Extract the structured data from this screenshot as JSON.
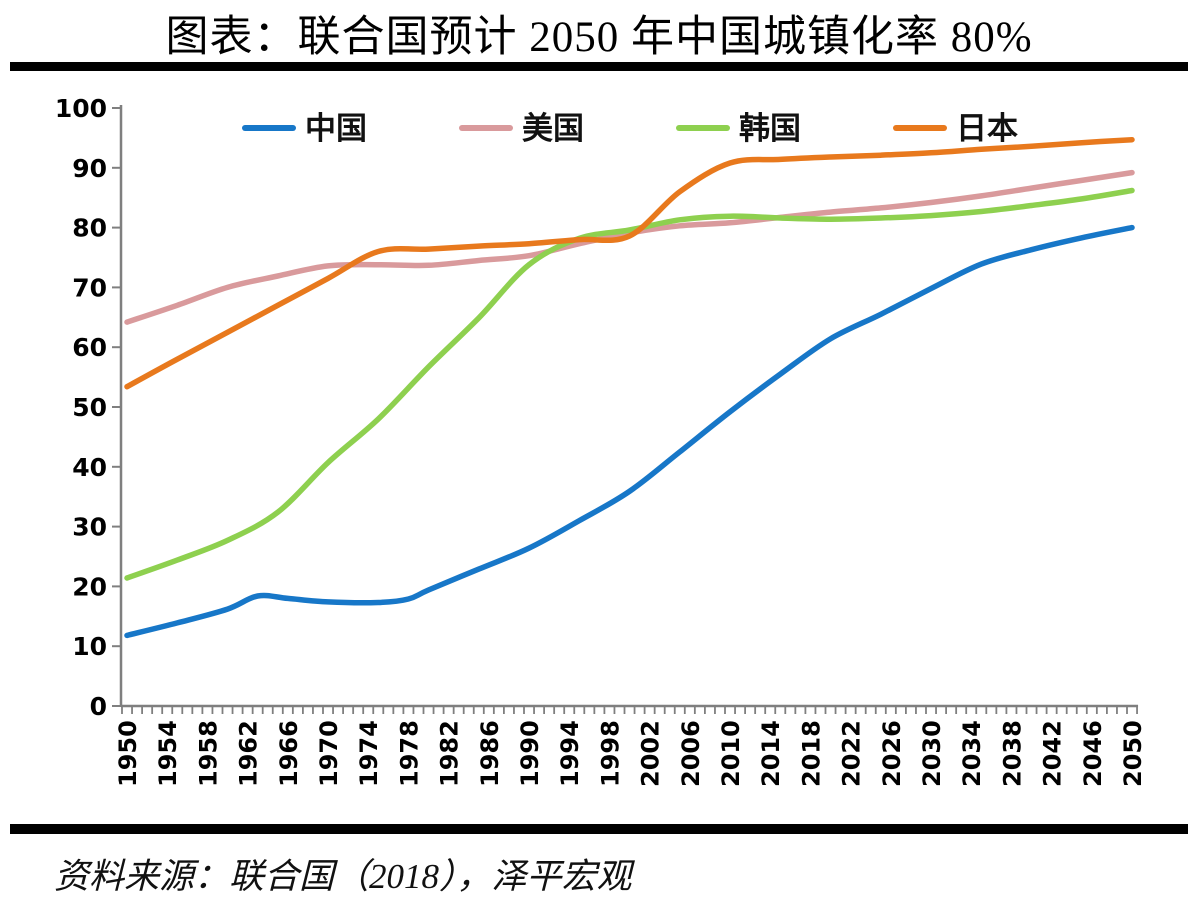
{
  "title": "图表：联合国预计 2050 年中国城镇化率 80%",
  "source_note": "资料来源：联合国（2018），泽平宏观",
  "styles": {
    "background": "#FFFFFF",
    "rule_color": "#000000",
    "axis_color": "#7F7F7F",
    "tick_label_color": "#000000",
    "title_color": "#000000"
  },
  "chart_data": {
    "type": "line",
    "title": "图表：联合国预计 2050 年中国城镇化率 80%",
    "xlabel": "",
    "ylabel": "",
    "x_range": [
      1950,
      2050
    ],
    "ylim": [
      0,
      100
    ],
    "grid": false,
    "legend_position": "top-center",
    "y_ticks": [
      0,
      10,
      20,
      30,
      40,
      50,
      60,
      70,
      80,
      90,
      100
    ],
    "x_tick_labels": [
      1950,
      1954,
      1958,
      1962,
      1966,
      1970,
      1974,
      1978,
      1982,
      1986,
      1990,
      1994,
      1998,
      2002,
      2006,
      2010,
      2014,
      2018,
      2022,
      2026,
      2030,
      2034,
      2038,
      2042,
      2046,
      2050
    ],
    "x_minor_tick_interval_years": 1,
    "series": [
      {
        "name": "中国",
        "color": "#1777C8",
        "points": [
          [
            1950,
            11.8
          ],
          [
            1955,
            13.9
          ],
          [
            1960,
            16.2
          ],
          [
            1963,
            18.4
          ],
          [
            1966,
            18.0
          ],
          [
            1970,
            17.4
          ],
          [
            1975,
            17.3
          ],
          [
            1978,
            17.9
          ],
          [
            1980,
            19.4
          ],
          [
            1985,
            22.9
          ],
          [
            1990,
            26.4
          ],
          [
            1995,
            31.0
          ],
          [
            2000,
            35.9
          ],
          [
            2005,
            42.5
          ],
          [
            2010,
            49.2
          ],
          [
            2015,
            55.5
          ],
          [
            2020,
            61.4
          ],
          [
            2025,
            65.5
          ],
          [
            2030,
            69.8
          ],
          [
            2035,
            73.9
          ],
          [
            2040,
            76.3
          ],
          [
            2045,
            78.3
          ],
          [
            2050,
            80.0
          ]
        ]
      },
      {
        "name": "美国",
        "color": "#D99A9C",
        "points": [
          [
            1950,
            64.2
          ],
          [
            1955,
            67.0
          ],
          [
            1960,
            70.0
          ],
          [
            1965,
            71.9
          ],
          [
            1970,
            73.6
          ],
          [
            1975,
            73.8
          ],
          [
            1980,
            73.7
          ],
          [
            1985,
            74.5
          ],
          [
            1990,
            75.3
          ],
          [
            1995,
            77.3
          ],
          [
            2000,
            79.1
          ],
          [
            2005,
            80.3
          ],
          [
            2010,
            80.8
          ],
          [
            2015,
            81.7
          ],
          [
            2020,
            82.6
          ],
          [
            2025,
            83.3
          ],
          [
            2030,
            84.2
          ],
          [
            2035,
            85.3
          ],
          [
            2040,
            86.6
          ],
          [
            2045,
            87.9
          ],
          [
            2050,
            89.2
          ]
        ]
      },
      {
        "name": "韩国",
        "color": "#8ED04F",
        "points": [
          [
            1950,
            21.4
          ],
          [
            1955,
            24.4
          ],
          [
            1960,
            27.7
          ],
          [
            1965,
            32.4
          ],
          [
            1970,
            40.7
          ],
          [
            1975,
            48.0
          ],
          [
            1980,
            56.7
          ],
          [
            1985,
            64.9
          ],
          [
            1990,
            73.8
          ],
          [
            1995,
            78.2
          ],
          [
            2000,
            79.6
          ],
          [
            2005,
            81.3
          ],
          [
            2010,
            81.9
          ],
          [
            2015,
            81.6
          ],
          [
            2020,
            81.4
          ],
          [
            2025,
            81.6
          ],
          [
            2030,
            82.0
          ],
          [
            2035,
            82.7
          ],
          [
            2040,
            83.7
          ],
          [
            2045,
            84.8
          ],
          [
            2050,
            86.2
          ]
        ]
      },
      {
        "name": "日本",
        "color": "#E8791D",
        "points": [
          [
            1950,
            53.4
          ],
          [
            1955,
            58.0
          ],
          [
            1960,
            62.5
          ],
          [
            1965,
            67.0
          ],
          [
            1970,
            71.5
          ],
          [
            1975,
            76.0
          ],
          [
            1980,
            76.4
          ],
          [
            1985,
            76.9
          ],
          [
            1990,
            77.3
          ],
          [
            1995,
            78.0
          ],
          [
            2000,
            78.6
          ],
          [
            2005,
            86.0
          ],
          [
            2010,
            90.8
          ],
          [
            2015,
            91.4
          ],
          [
            2020,
            91.8
          ],
          [
            2025,
            92.1
          ],
          [
            2030,
            92.5
          ],
          [
            2035,
            93.1
          ],
          [
            2040,
            93.6
          ],
          [
            2045,
            94.2
          ],
          [
            2050,
            94.7
          ]
        ]
      }
    ]
  }
}
